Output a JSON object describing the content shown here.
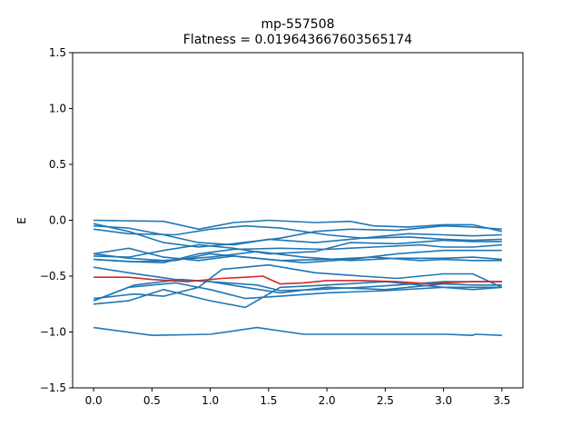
{
  "chart_data": {
    "type": "line",
    "title": "mp-557508",
    "subtitle": "Flatness = 0.019643667603565174",
    "xlabel": "",
    "ylabel": "E",
    "xlim": [
      -0.18,
      3.68
    ],
    "ylim": [
      -1.5,
      1.5
    ],
    "xticks": [
      "0.0",
      "0.5",
      "1.0",
      "1.5",
      "2.0",
      "2.5",
      "3.0",
      "3.5"
    ],
    "yticks": [
      "1.5",
      "1.0",
      "0.5",
      "0.0",
      "−0.5",
      "−1.0",
      "−1.5"
    ],
    "grid": false,
    "band_color": "#1f77b4",
    "flat_band_color": "#d62728",
    "series": [
      {
        "highlight": false,
        "points": [
          [
            0,
            -0.96
          ],
          [
            0.5,
            -1.03
          ],
          [
            1.0,
            -1.02
          ],
          [
            1.4,
            -0.96
          ],
          [
            1.8,
            -1.02
          ],
          [
            2.5,
            -1.02
          ],
          [
            3.0,
            -1.02
          ],
          [
            3.02,
            -1.02
          ],
          [
            3.25,
            -1.03
          ],
          [
            3.27,
            -1.02
          ],
          [
            3.5,
            -1.03
          ]
        ]
      },
      {
        "highlight": false,
        "points": [
          [
            0,
            -0.72
          ],
          [
            0.3,
            -0.6
          ],
          [
            0.7,
            -0.56
          ],
          [
            1.0,
            -0.62
          ],
          [
            1.3,
            -0.7
          ],
          [
            1.6,
            -0.68
          ],
          [
            2.0,
            -0.65
          ],
          [
            2.5,
            -0.63
          ],
          [
            3.0,
            -0.6
          ],
          [
            3.25,
            -0.6
          ],
          [
            3.5,
            -0.6
          ]
        ]
      },
      {
        "highlight": false,
        "points": [
          [
            0,
            -0.75
          ],
          [
            0.3,
            -0.72
          ],
          [
            0.6,
            -0.62
          ],
          [
            1.0,
            -0.72
          ],
          [
            1.3,
            -0.78
          ],
          [
            1.6,
            -0.6
          ],
          [
            2.0,
            -0.58
          ],
          [
            2.5,
            -0.55
          ],
          [
            3.0,
            -0.6
          ],
          [
            3.25,
            -0.62
          ],
          [
            3.5,
            -0.6
          ]
        ]
      },
      {
        "highlight": false,
        "points": [
          [
            0,
            -0.72
          ],
          [
            0.35,
            -0.58
          ],
          [
            0.75,
            -0.53
          ],
          [
            1.0,
            -0.55
          ],
          [
            1.3,
            -0.6
          ],
          [
            1.6,
            -0.65
          ],
          [
            2.0,
            -0.6
          ],
          [
            2.5,
            -0.62
          ],
          [
            3.0,
            -0.57
          ],
          [
            3.25,
            -0.58
          ],
          [
            3.5,
            -0.58
          ]
        ]
      },
      {
        "highlight": false,
        "points": [
          [
            0,
            -0.42
          ],
          [
            0.3,
            -0.47
          ],
          [
            0.7,
            -0.53
          ],
          [
            1.0,
            -0.55
          ],
          [
            1.4,
            -0.58
          ],
          [
            1.6,
            -0.63
          ],
          [
            1.9,
            -0.62
          ],
          [
            2.3,
            -0.6
          ],
          [
            2.6,
            -0.58
          ],
          [
            3.0,
            -0.55
          ],
          [
            3.25,
            -0.55
          ],
          [
            3.5,
            -0.55
          ]
        ]
      },
      {
        "highlight": false,
        "points": [
          [
            0,
            -0.7
          ],
          [
            0.35,
            -0.66
          ],
          [
            0.6,
            -0.68
          ],
          [
            0.9,
            -0.6
          ],
          [
            1.1,
            -0.44
          ],
          [
            1.5,
            -0.4
          ],
          [
            1.9,
            -0.47
          ],
          [
            2.3,
            -0.5
          ],
          [
            2.6,
            -0.52
          ],
          [
            3.0,
            -0.48
          ],
          [
            3.25,
            -0.48
          ],
          [
            3.5,
            -0.6
          ]
        ]
      },
      {
        "highlight": false,
        "points": [
          [
            0,
            -0.3
          ],
          [
            0.3,
            -0.34
          ],
          [
            0.6,
            -0.36
          ],
          [
            1.0,
            -0.33
          ],
          [
            1.4,
            -0.28
          ],
          [
            1.8,
            -0.33
          ],
          [
            2.2,
            -0.36
          ],
          [
            2.6,
            -0.34
          ],
          [
            3.0,
            -0.34
          ],
          [
            3.25,
            -0.33
          ],
          [
            3.5,
            -0.35
          ]
        ]
      },
      {
        "highlight": false,
        "points": [
          [
            0,
            -0.3
          ],
          [
            0.3,
            -0.25
          ],
          [
            0.6,
            -0.33
          ],
          [
            0.9,
            -0.36
          ],
          [
            1.2,
            -0.32
          ],
          [
            1.5,
            -0.35
          ],
          [
            1.8,
            -0.38
          ],
          [
            2.2,
            -0.35
          ],
          [
            2.6,
            -0.3
          ],
          [
            3.0,
            -0.27
          ],
          [
            3.25,
            -0.27
          ],
          [
            3.5,
            -0.27
          ]
        ]
      },
      {
        "highlight": false,
        "points": [
          [
            0,
            -0.35
          ],
          [
            0.3,
            -0.37
          ],
          [
            0.6,
            -0.38
          ],
          [
            0.9,
            -0.3
          ],
          [
            1.2,
            -0.26
          ],
          [
            1.6,
            -0.25
          ],
          [
            2.0,
            -0.26
          ],
          [
            2.4,
            -0.24
          ],
          [
            2.8,
            -0.22
          ],
          [
            3.0,
            -0.24
          ],
          [
            3.25,
            -0.24
          ],
          [
            3.5,
            -0.22
          ]
        ]
      },
      {
        "highlight": false,
        "points": [
          [
            0,
            -0.05
          ],
          [
            0.3,
            -0.07
          ],
          [
            0.6,
            -0.13
          ],
          [
            0.9,
            -0.2
          ],
          [
            1.2,
            -0.22
          ],
          [
            1.5,
            -0.17
          ],
          [
            1.9,
            -0.2
          ],
          [
            2.3,
            -0.16
          ],
          [
            2.7,
            -0.12
          ],
          [
            3.0,
            -0.13
          ],
          [
            3.25,
            -0.14
          ],
          [
            3.5,
            -0.13
          ]
        ]
      },
      {
        "highlight": false,
        "points": [
          [
            0,
            -0.08
          ],
          [
            0.3,
            -0.12
          ],
          [
            0.7,
            -0.13
          ],
          [
            1.0,
            -0.08
          ],
          [
            1.3,
            -0.05
          ],
          [
            1.6,
            -0.07
          ],
          [
            2.0,
            -0.13
          ],
          [
            2.3,
            -0.16
          ],
          [
            2.7,
            -0.15
          ],
          [
            3.0,
            -0.17
          ],
          [
            3.25,
            -0.18
          ],
          [
            3.5,
            -0.17
          ]
        ]
      },
      {
        "highlight": false,
        "points": [
          [
            0,
            0.0
          ],
          [
            0.6,
            -0.01
          ],
          [
            0.9,
            -0.08
          ],
          [
            1.2,
            -0.02
          ],
          [
            1.5,
            0.0
          ],
          [
            1.9,
            -0.02
          ],
          [
            2.2,
            -0.01
          ],
          [
            2.4,
            -0.05
          ],
          [
            2.7,
            -0.06
          ],
          [
            3.0,
            -0.04
          ],
          [
            3.25,
            -0.04
          ],
          [
            3.5,
            -0.1
          ]
        ]
      },
      {
        "highlight": false,
        "points": [
          [
            0,
            -0.03
          ],
          [
            0.3,
            -0.1
          ],
          [
            0.6,
            -0.2
          ],
          [
            0.9,
            -0.24
          ],
          [
            1.2,
            -0.21
          ],
          [
            1.6,
            -0.16
          ],
          [
            1.9,
            -0.1
          ],
          [
            2.2,
            -0.08
          ],
          [
            2.6,
            -0.09
          ],
          [
            3.0,
            -0.05
          ],
          [
            3.25,
            -0.06
          ],
          [
            3.5,
            -0.08
          ]
        ]
      },
      {
        "highlight": false,
        "points": [
          [
            0,
            -0.32
          ],
          [
            0.3,
            -0.33
          ],
          [
            0.6,
            -0.27
          ],
          [
            0.9,
            -0.22
          ],
          [
            1.2,
            -0.25
          ],
          [
            1.5,
            -0.3
          ],
          [
            1.9,
            -0.28
          ],
          [
            2.2,
            -0.2
          ],
          [
            2.6,
            -0.21
          ],
          [
            3.0,
            -0.18
          ],
          [
            3.25,
            -0.19
          ],
          [
            3.5,
            -0.19
          ]
        ]
      },
      {
        "highlight": false,
        "points": [
          [
            0,
            -0.35
          ],
          [
            0.35,
            -0.37
          ],
          [
            0.7,
            -0.36
          ],
          [
            1.0,
            -0.3
          ],
          [
            1.3,
            -0.33
          ],
          [
            1.6,
            -0.36
          ],
          [
            2.0,
            -0.35
          ],
          [
            2.4,
            -0.33
          ],
          [
            2.8,
            -0.36
          ],
          [
            3.0,
            -0.35
          ],
          [
            3.25,
            -0.36
          ],
          [
            3.5,
            -0.36
          ]
        ]
      },
      {
        "highlight": true,
        "points": [
          [
            0,
            -0.51
          ],
          [
            0.3,
            -0.51
          ],
          [
            0.5,
            -0.53
          ],
          [
            0.8,
            -0.55
          ],
          [
            1.1,
            -0.52
          ],
          [
            1.3,
            -0.51
          ],
          [
            1.45,
            -0.5
          ],
          [
            1.6,
            -0.57
          ],
          [
            1.8,
            -0.56
          ],
          [
            2.0,
            -0.54
          ],
          [
            2.3,
            -0.54
          ],
          [
            2.6,
            -0.55
          ],
          [
            2.9,
            -0.57
          ],
          [
            3.0,
            -0.56
          ],
          [
            3.25,
            -0.55
          ],
          [
            3.5,
            -0.55
          ]
        ]
      }
    ]
  }
}
